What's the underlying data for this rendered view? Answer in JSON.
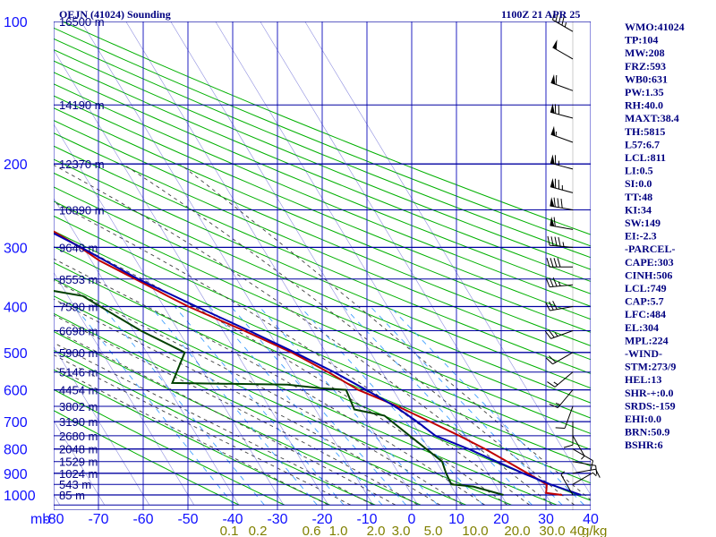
{
  "header": {
    "title": "OEJN (41024) Sounding",
    "time": "1100Z 21 APR 25"
  },
  "chart_data": {
    "type": "line",
    "subtype": "skew-T log-P sounding diagram",
    "pressure_unit_label": "mb",
    "mixing_ratio_unit_label": "g/kg",
    "pressure_levels": [
      100,
      200,
      300,
      400,
      500,
      600,
      700,
      800,
      900,
      1000
    ],
    "temperature_ticks": [
      -80,
      -70,
      -60,
      -50,
      -40,
      -30,
      -20,
      -10,
      0,
      10,
      20,
      30,
      40
    ],
    "temperature_tick_labels": [
      "-80",
      "-70",
      "-60",
      "-50",
      "-40",
      "-30",
      "-20",
      "-10",
      "0",
      "10",
      "20",
      "30",
      "40"
    ],
    "mixing_ratio_labels": [
      "0.1",
      "0.2",
      "0.6",
      "1.0",
      "2.0",
      "3.0",
      "5.0",
      "10.0",
      "20.0",
      "30.0",
      "40"
    ],
    "mixing_ratio_values": [
      0.1,
      0.2,
      0.6,
      1.0,
      2.0,
      3.0,
      5.0,
      10.0,
      20.0,
      30.0,
      40.0
    ],
    "height_levels": [
      {
        "p": 100,
        "label": "16500 m"
      },
      {
        "p": 150,
        "label": "14190 m"
      },
      {
        "p": 200,
        "label": "12370 m"
      },
      {
        "p": 250,
        "label": "10890 m"
      },
      {
        "p": 300,
        "label": "9640 m"
      },
      {
        "p": 350,
        "label": "8553 m"
      },
      {
        "p": 400,
        "label": "7590 m"
      },
      {
        "p": 450,
        "label": "6698 m"
      },
      {
        "p": 500,
        "label": "5900 m"
      },
      {
        "p": 550,
        "label": "5146 m"
      },
      {
        "p": 600,
        "label": "4454 m"
      },
      {
        "p": 650,
        "label": "3802 m"
      },
      {
        "p": 700,
        "label": "3190 m"
      },
      {
        "p": 750,
        "label": "2680 m"
      },
      {
        "p": 800,
        "label": "2048 m"
      },
      {
        "p": 850,
        "label": "1529 m"
      },
      {
        "p": 900,
        "label": "1024 m"
      },
      {
        "p": 950,
        "label": "543 m"
      },
      {
        "p": 1000,
        "label": "85 m"
      }
    ],
    "series": [
      {
        "key": "temperature",
        "color": "#c00000",
        "points": [
          {
            "p": 100,
            "t": -77.5
          },
          {
            "p": 105,
            "t": -76.5
          },
          {
            "p": 120,
            "t": -72.8
          },
          {
            "p": 150,
            "t": -64.9
          },
          {
            "p": 180,
            "t": -60.2
          },
          {
            "p": 195,
            "t": -58.8
          },
          {
            "p": 200,
            "t": -57.2
          },
          {
            "p": 230,
            "t": -51.9
          },
          {
            "p": 250,
            "t": -50.3
          },
          {
            "p": 260,
            "t": -47.7
          },
          {
            "p": 300,
            "t": -40.7
          },
          {
            "p": 320,
            "t": -38.2
          },
          {
            "p": 340,
            "t": -34.4
          },
          {
            "p": 360,
            "t": -30.9
          },
          {
            "p": 380,
            "t": -27.7
          },
          {
            "p": 400,
            "t": -24.5
          },
          {
            "p": 450,
            "t": -15.3
          },
          {
            "p": 500,
            "t": -7.6
          },
          {
            "p": 550,
            "t": -2.1
          },
          {
            "p": 600,
            "t": 2.2
          },
          {
            "p": 650,
            "t": 8.8
          },
          {
            "p": 700,
            "t": 14.0
          },
          {
            "p": 750,
            "t": 18.6
          },
          {
            "p": 800,
            "t": 22.6
          },
          {
            "p": 900,
            "t": 28.8
          },
          {
            "p": 950,
            "t": 31.6
          },
          {
            "p": 975,
            "t": 30.8
          },
          {
            "p": 990,
            "t": 30.3
          },
          {
            "p": 1000,
            "t": 33.6
          }
        ]
      },
      {
        "key": "dewpoint",
        "color": "#004000",
        "points": [
          {
            "p": 150,
            "t": -81.0
          },
          {
            "p": 160,
            "t": -79.4
          },
          {
            "p": 200,
            "t": -78.9
          },
          {
            "p": 250,
            "t": -70.8
          },
          {
            "p": 300,
            "t": -66.1
          },
          {
            "p": 320,
            "t": -61.4
          },
          {
            "p": 340,
            "t": -60.1
          },
          {
            "p": 360,
            "t": -59.4
          },
          {
            "p": 380,
            "t": -46.7
          },
          {
            "p": 450,
            "t": -38.4
          },
          {
            "p": 500,
            "t": -31.5
          },
          {
            "p": 580,
            "t": -38.4
          },
          {
            "p": 585,
            "t": -12.9
          },
          {
            "p": 595,
            "t": -6.0
          },
          {
            "p": 600,
            "t": -0.5
          },
          {
            "p": 660,
            "t": -1.3
          },
          {
            "p": 680,
            "t": 4.6
          },
          {
            "p": 850,
            "t": 11.3
          },
          {
            "p": 900,
            "t": 10.6
          },
          {
            "p": 950,
            "t": 10.3
          },
          {
            "p": 960,
            "t": 14.9
          },
          {
            "p": 1000,
            "t": 20.5
          }
        ]
      },
      {
        "key": "parcel",
        "color": "#0000b0",
        "points": [
          {
            "p": 150,
            "t": -71.2
          },
          {
            "p": 200,
            "t": -61.0
          },
          {
            "p": 250,
            "t": -51.8
          },
          {
            "p": 300,
            "t": -40.5
          },
          {
            "p": 350,
            "t": -32.0
          },
          {
            "p": 400,
            "t": -22.7
          },
          {
            "p": 450,
            "t": -14.2
          },
          {
            "p": 500,
            "t": -6.9
          },
          {
            "p": 550,
            "t": -0.8
          },
          {
            "p": 600,
            "t": 4.0
          },
          {
            "p": 650,
            "t": 8.2
          },
          {
            "p": 700,
            "t": 11.1
          },
          {
            "p": 750,
            "t": 13.3
          },
          {
            "p": 800,
            "t": 18.9
          },
          {
            "p": 900,
            "t": 27.8
          },
          {
            "p": 950,
            "t": 32.4
          },
          {
            "p": 1000,
            "t": 37.8
          }
        ]
      }
    ],
    "wind_barbs": [
      {
        "p": 105,
        "dir": 300,
        "kt": 45
      },
      {
        "p": 120,
        "dir": 300,
        "kt": 50
      },
      {
        "p": 140,
        "dir": 290,
        "kt": 60
      },
      {
        "p": 160,
        "dir": 285,
        "kt": 70
      },
      {
        "p": 180,
        "dir": 290,
        "kt": 55
      },
      {
        "p": 205,
        "dir": 285,
        "kt": 65
      },
      {
        "p": 230,
        "dir": 285,
        "kt": 75
      },
      {
        "p": 250,
        "dir": 280,
        "kt": 80
      },
      {
        "p": 275,
        "dir": 280,
        "kt": 60
      },
      {
        "p": 300,
        "dir": 275,
        "kt": 45
      },
      {
        "p": 330,
        "dir": 270,
        "kt": 40
      },
      {
        "p": 360,
        "dir": 265,
        "kt": 35
      },
      {
        "p": 400,
        "dir": 260,
        "kt": 30
      },
      {
        "p": 450,
        "dir": 250,
        "kt": 25
      },
      {
        "p": 500,
        "dir": 240,
        "kt": 20
      },
      {
        "p": 550,
        "dir": 230,
        "kt": 15
      },
      {
        "p": 600,
        "dir": 220,
        "kt": 15
      },
      {
        "p": 650,
        "dir": 200,
        "kt": 10
      },
      {
        "p": 700,
        "dir": 180,
        "kt": 10
      },
      {
        "p": 750,
        "dir": 150,
        "kt": 5
      },
      {
        "p": 800,
        "dir": 120,
        "kt": 10
      },
      {
        "p": 850,
        "dir": 100,
        "kt": 10
      },
      {
        "p": 900,
        "dir": 80,
        "kt": 10
      },
      {
        "p": 950,
        "dir": 60,
        "kt": 5
      },
      {
        "p": 1000,
        "dir": 330,
        "kt": 5
      }
    ],
    "temp_range": [
      -80,
      40
    ],
    "pressure_range": [
      100,
      1050
    ]
  },
  "indices": [
    "WMO:41024",
    "TP:104",
    "MW:208",
    "FRZ:593",
    "WB0:631",
    "PW:1.35",
    "RH:40.0",
    "MAXT:38.4",
    "TH:5815",
    "L57:6.7",
    "LCL:811",
    "LI:0.5",
    "SI:0.0",
    "TT:48",
    "KI:34",
    "SW:149",
    "EI:-2.3",
    "-PARCEL-",
    "CAPE:303",
    "CINH:506",
    "LCL:749",
    "CAP:5.7",
    "LFC:484",
    "EL:304",
    "MPL:224",
    "-WIND-",
    "STM:273/9",
    "HEL:13",
    "SHR-+:0.0",
    "SRDS:-159",
    "EHI:0.0",
    "BRN:50.9",
    "BSHR:6"
  ],
  "colors": {
    "isobar": "#0000a0",
    "isotherm": "#2020c0",
    "dry_adiabat": "#00b000",
    "moist_adiabat": "#404040",
    "mixing_ratio": "#40a0ff",
    "temperature": "#c00000",
    "dewpoint": "#004000",
    "parcel": "#0000b0"
  }
}
